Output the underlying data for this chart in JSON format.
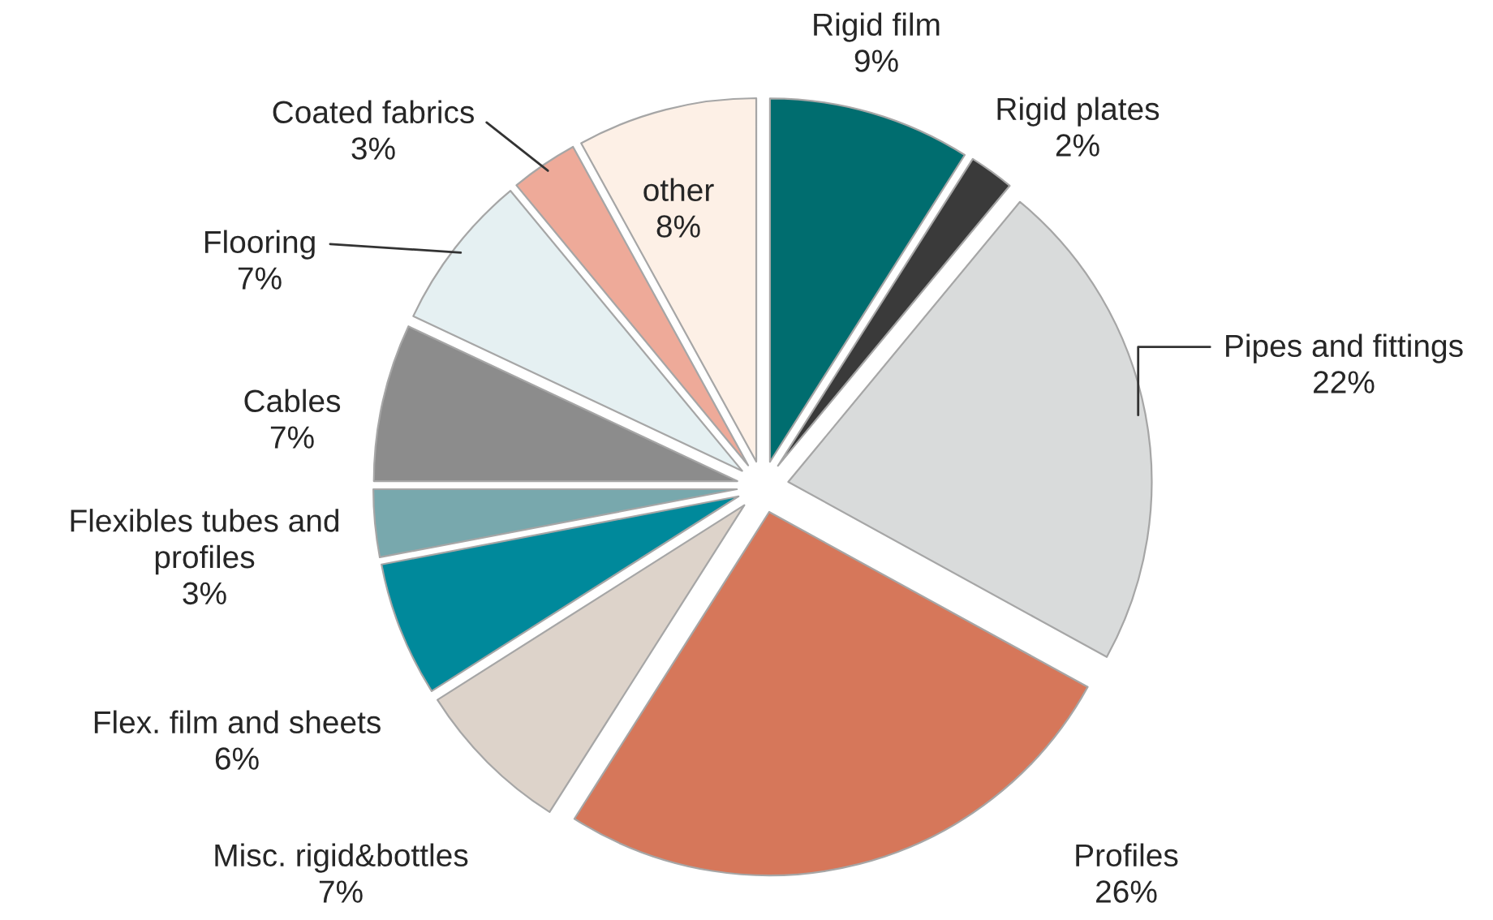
{
  "chart_data": {
    "type": "pie",
    "categories": [
      "Rigid film",
      "Rigid plates",
      "Pipes and fittings",
      "Profiles",
      "Misc. rigid&bottles",
      "Flex. film and sheets",
      "Flexibles tubes and\nprofiles",
      "Cables",
      "Flooring",
      "Coated fabrics",
      "other"
    ],
    "values": [
      9,
      2,
      22,
      26,
      7,
      6,
      3,
      7,
      7,
      3,
      8
    ],
    "value_labels": [
      "9%",
      "2%",
      "22%",
      "26%",
      "7%",
      "6%",
      "3%",
      "7%",
      "7%",
      "3%",
      "8%"
    ],
    "colors": [
      "#006d6f",
      "#3a3a3a",
      "#d9dbdb",
      "#d6775a",
      "#ddd3ca",
      "#00899b",
      "#78a8ad",
      "#8c8c8c",
      "#e5f0f2",
      "#eeaa99",
      "#fdf0e6"
    ]
  }
}
